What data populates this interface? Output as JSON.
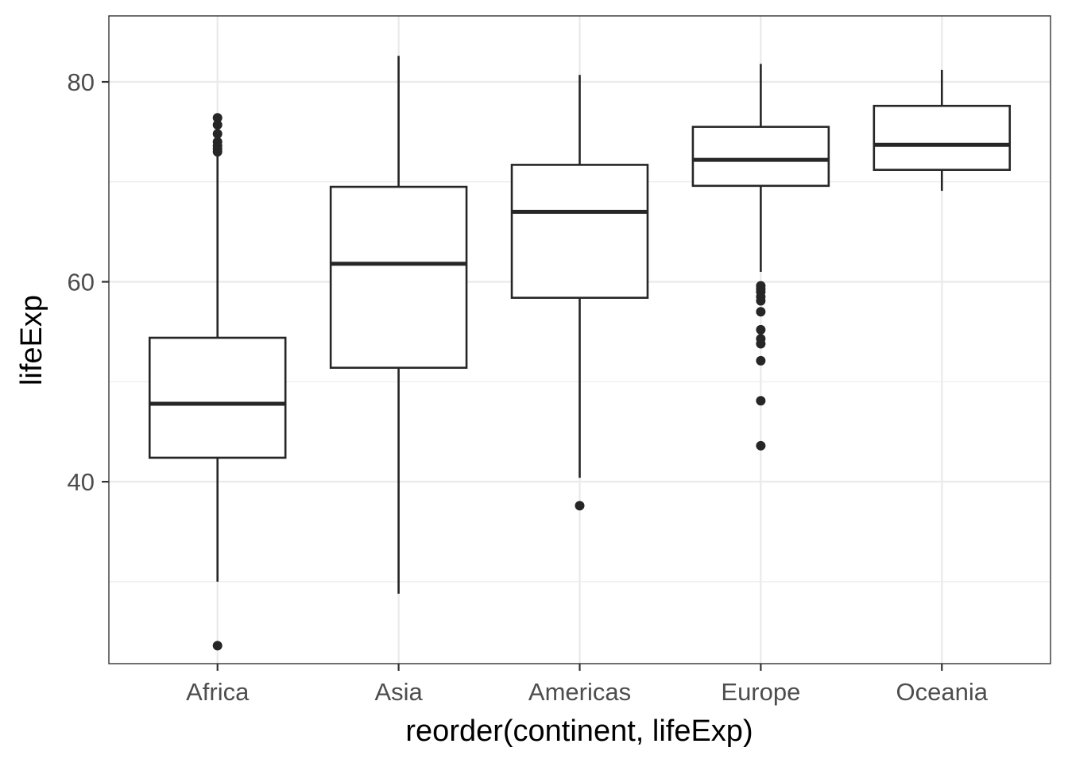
{
  "chart_data": {
    "type": "boxplot",
    "title": "",
    "xlabel": "reorder(continent, lifeExp)",
    "ylabel": "lifeExp",
    "ylim": [
      21.8,
      86.6
    ],
    "y_major_ticks": [
      40,
      60,
      80
    ],
    "y_minor_ticks": [
      30,
      50,
      70
    ],
    "grid": true,
    "theme": "bw",
    "colors": {
      "box_line": "#262626",
      "grid": "#ebebeb",
      "panel_border": "#333333",
      "tick_label": "#4d4d4d",
      "background": "#ffffff"
    },
    "categories": [
      "Africa",
      "Asia",
      "Americas",
      "Europe",
      "Oceania"
    ],
    "boxes": [
      {
        "category": "Africa",
        "whisker_low": 30.0,
        "q1": 42.4,
        "median": 47.8,
        "q3": 54.4,
        "whisker_high": 72.8,
        "outliers": [
          23.6,
          73.0,
          73.3,
          73.6,
          74.0,
          74.8,
          75.7,
          76.4
        ]
      },
      {
        "category": "Asia",
        "whisker_low": 28.8,
        "q1": 51.4,
        "median": 61.8,
        "q3": 69.5,
        "whisker_high": 82.6,
        "outliers": []
      },
      {
        "category": "Americas",
        "whisker_low": 40.4,
        "q1": 58.4,
        "median": 67.0,
        "q3": 71.7,
        "whisker_high": 80.7,
        "outliers": [
          37.6
        ]
      },
      {
        "category": "Europe",
        "whisker_low": 61.0,
        "q1": 69.6,
        "median": 72.2,
        "q3": 75.5,
        "whisker_high": 81.8,
        "outliers": [
          43.6,
          48.1,
          52.1,
          53.8,
          54.3,
          55.2,
          57.0,
          58.1,
          58.5,
          59.0,
          59.3,
          59.6
        ]
      },
      {
        "category": "Oceania",
        "whisker_low": 69.1,
        "q1": 71.2,
        "median": 73.7,
        "q3": 77.6,
        "whisker_high": 81.2,
        "outliers": []
      }
    ]
  }
}
